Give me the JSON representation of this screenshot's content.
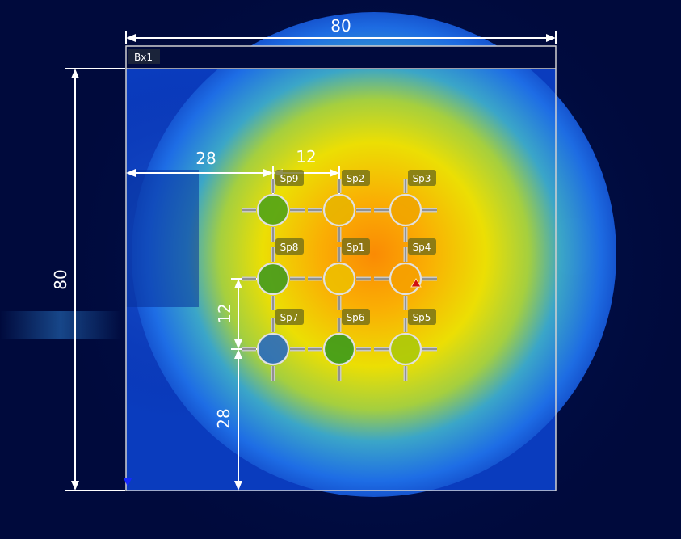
{
  "box": {
    "label": "Bx1"
  },
  "dimensions": {
    "box_width": "80",
    "box_height": "80",
    "offset_x": "28",
    "spacing_x": "12",
    "spacing_y": "12",
    "offset_y": "28"
  },
  "spots": [
    {
      "id": "sp9",
      "label": "Sp9",
      "fill": "#48a018"
    },
    {
      "id": "sp2",
      "label": "Sp2",
      "fill": "#e8b400"
    },
    {
      "id": "sp3",
      "label": "Sp3",
      "fill": "#f0a400"
    },
    {
      "id": "sp8",
      "label": "Sp8",
      "fill": "#389620"
    },
    {
      "id": "sp1",
      "label": "Sp1",
      "fill": "#ecc000"
    },
    {
      "id": "sp4",
      "label": "Sp4",
      "fill": "#f4a000"
    },
    {
      "id": "sp7",
      "label": "Sp7",
      "fill": "#1e64c8"
    },
    {
      "id": "sp6",
      "label": "Sp6",
      "fill": "#30961c"
    },
    {
      "id": "sp5",
      "label": "Sp5",
      "fill": "#a8c80a"
    }
  ],
  "colors": {
    "background": "#000a3c",
    "dimension_line": "#ffffff",
    "label_bg": "#6a6a1a",
    "marker_max": "#d01010",
    "marker_min": "#1428ff"
  }
}
